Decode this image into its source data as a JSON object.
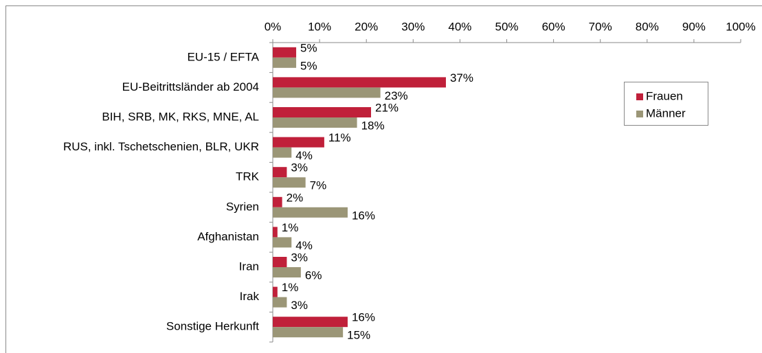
{
  "chart_data": {
    "type": "bar",
    "orientation": "horizontal",
    "categories": [
      "EU-15 / EFTA",
      "EU-Beitrittsländer ab 2004",
      "BIH, SRB, MK, RKS, MNE, AL",
      "RUS, inkl. Tschetschenien, BLR, UKR",
      "TRK",
      "Syrien",
      "Afghanistan",
      "Iran",
      "Irak",
      "Sonstige Herkunft"
    ],
    "series": [
      {
        "name": "Frauen",
        "color": "#c0203a",
        "values": [
          5,
          37,
          21,
          11,
          3,
          2,
          1,
          3,
          1,
          16
        ],
        "value_labels": [
          "5%",
          "37%",
          "21%",
          "11%",
          "3%",
          "2%",
          "1%",
          "3%",
          "1%",
          "16%"
        ]
      },
      {
        "name": "Männer",
        "color": "#9b9677",
        "values": [
          5,
          23,
          18,
          4,
          7,
          16,
          4,
          6,
          3,
          15
        ],
        "value_labels": [
          "5%",
          "23%",
          "18%",
          "4%",
          "7%",
          "16%",
          "4%",
          "6%",
          "3%",
          "15%"
        ]
      }
    ],
    "xlim": [
      0,
      100
    ],
    "xticks": [
      {
        "value": 0,
        "label": "0%"
      },
      {
        "value": 10,
        "label": "10%"
      },
      {
        "value": 20,
        "label": "20%"
      },
      {
        "value": 30,
        "label": "30%"
      },
      {
        "value": 40,
        "label": "40%"
      },
      {
        "value": 50,
        "label": "50%"
      },
      {
        "value": 60,
        "label": "60%"
      },
      {
        "value": 70,
        "label": "70%"
      },
      {
        "value": 80,
        "label": "80%"
      },
      {
        "value": 90,
        "label": "90%"
      },
      {
        "value": 100,
        "label": "100%"
      }
    ],
    "legend": "right"
  }
}
